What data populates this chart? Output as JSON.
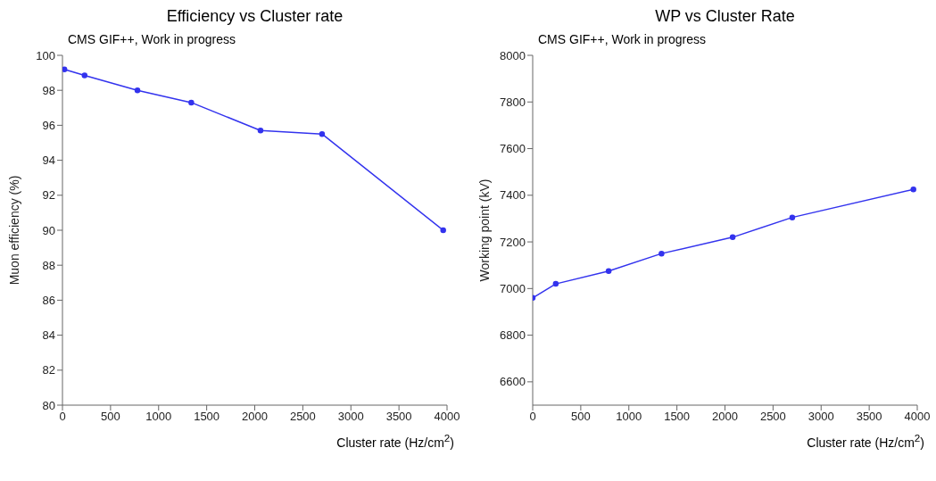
{
  "chart_data": [
    {
      "type": "line",
      "title": "Efficiency vs Cluster rate",
      "annotations": [
        "CMS GIF++, Work in progress"
      ],
      "xlabel": "Cluster rate (Hz/cm$^{2}$)",
      "ylabel": "Muon efficiency (%)",
      "x": [
        20,
        230,
        780,
        1340,
        2060,
        2700,
        3960
      ],
      "series": [
        {
          "color": "#3333ee",
          "values": [
            99.2,
            98.85,
            98.0,
            97.3,
            95.7,
            95.5,
            90.0
          ]
        }
      ],
      "xlim": [
        0,
        4000
      ],
      "xticks": [
        0,
        500,
        1000,
        1500,
        2000,
        2500,
        3000,
        3500,
        4000
      ],
      "ylim": [
        80,
        100
      ],
      "yticks": [
        80,
        82,
        84,
        86,
        88,
        90,
        92,
        94,
        96,
        98,
        100
      ],
      "grid": false,
      "legend": false,
      "marker": "circle",
      "line_style": "solid"
    },
    {
      "type": "line",
      "title": "WP vs Cluster Rate",
      "annotations": [
        "CMS GIF++, Work in progress"
      ],
      "xlabel": "Cluster rate (Hz/cm$^{2}$)",
      "ylabel": "Working point (kV)",
      "x": [
        0,
        240,
        790,
        1340,
        2080,
        2700,
        3960
      ],
      "series": [
        {
          "color": "#3333ee",
          "values": [
            6960,
            7020,
            7075,
            7150,
            7220,
            7305,
            7425
          ]
        }
      ],
      "xlim": [
        0,
        4000
      ],
      "xticks": [
        0,
        500,
        1000,
        1500,
        2000,
        2500,
        3000,
        3500,
        4000
      ],
      "ylim": [
        6500,
        8000
      ],
      "yticks": [
        6600,
        6800,
        7000,
        7200,
        7400,
        7600,
        7800,
        8000
      ],
      "grid": false,
      "legend": false,
      "marker": "circle",
      "line_style": "solid"
    }
  ]
}
